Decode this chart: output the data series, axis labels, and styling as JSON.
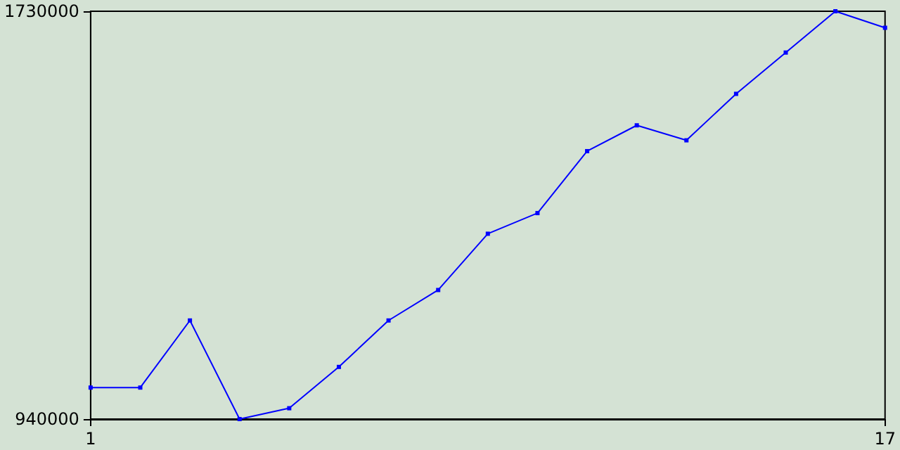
{
  "chart_data": {
    "type": "line",
    "x": [
      1,
      2,
      3,
      4,
      5,
      6,
      7,
      8,
      9,
      10,
      11,
      12,
      13,
      14,
      15,
      16,
      17
    ],
    "series": [
      {
        "color": "#0000ff",
        "values": [
          1001000,
          1001000,
          1131000,
          940000,
          961000,
          1041000,
          1131000,
          1190000,
          1299000,
          1339000,
          1459000,
          1509000,
          1480000,
          1570000,
          1650000,
          1730000,
          1698000
        ]
      }
    ],
    "xlim": [
      1,
      17
    ],
    "xticks": [
      1,
      17
    ],
    "ylim": [
      940000,
      1730000
    ],
    "yticks": [
      940000,
      1730000
    ],
    "marker": "square",
    "line_style": "solid"
  }
}
